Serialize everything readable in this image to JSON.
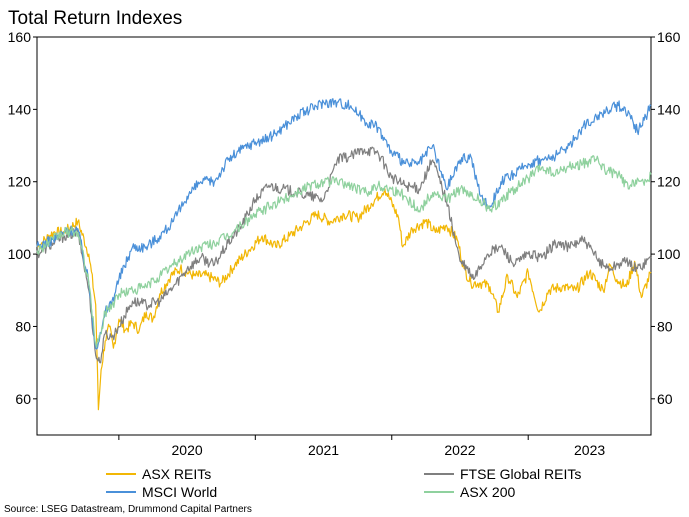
{
  "chart_data": {
    "type": "line",
    "title": "Total Return Indexes",
    "source": "Source: LSEG Datastream, Drummond Capital Partners",
    "ylim": [
      50,
      160
    ],
    "yticks": [
      60,
      80,
      100,
      120,
      140,
      160
    ],
    "y_tick_labels": [
      "60",
      "80",
      "100",
      "120",
      "140",
      "160"
    ],
    "x_range": [
      2019.4,
      2023.9
    ],
    "x_year_boundaries": [
      2020.0,
      2021.0,
      2022.0,
      2023.0
    ],
    "x_labels": [
      {
        "text": "2020",
        "at": 2020.5
      },
      {
        "text": "2021",
        "at": 2021.5
      },
      {
        "text": "2022",
        "at": 2022.5
      },
      {
        "text": "2023",
        "at": 2023.45
      }
    ],
    "series": [
      {
        "name": "ASX REITs",
        "color": "#F2B705",
        "x": [
          2019.4,
          2019.52,
          2019.6,
          2019.7,
          2019.78,
          2019.83,
          2019.85,
          2019.87,
          2019.9,
          2019.93,
          2019.96,
          2020.0,
          2020.05,
          2020.1,
          2020.15,
          2020.2,
          2020.25,
          2020.3,
          2020.38,
          2020.45,
          2020.55,
          2020.65,
          2020.75,
          2020.85,
          2020.95,
          2021.05,
          2021.15,
          2021.25,
          2021.35,
          2021.45,
          2021.55,
          2021.65,
          2021.75,
          2021.85,
          2021.95,
          2022.05,
          2022.08,
          2022.15,
          2022.25,
          2022.32,
          2022.4,
          2022.48,
          2022.53,
          2022.58,
          2022.65,
          2022.72,
          2022.78,
          2022.85,
          2022.92,
          2023.0,
          2023.08,
          2023.15,
          2023.25,
          2023.35,
          2023.45,
          2023.55,
          2023.6,
          2023.65,
          2023.72,
          2023.78,
          2023.83,
          2023.9
        ],
        "values": [
          102,
          106,
          106,
          109,
          100,
          86,
          57,
          68,
          76,
          80,
          74,
          82,
          79,
          81,
          79,
          84,
          82,
          89,
          94,
          96,
          94,
          94,
          92,
          97,
          101,
          105,
          102,
          105,
          108,
          111,
          109,
          111,
          110,
          114,
          118,
          110,
          102,
          107,
          109,
          106,
          108,
          104,
          96,
          92,
          92,
          91,
          84,
          94,
          88,
          95,
          84,
          90,
          91,
          90,
          95,
          90,
          97,
          93,
          91,
          98,
          88,
          95
        ]
      },
      {
        "name": "FTSE Global REITs",
        "color": "#7F7F7F",
        "x": [
          2019.4,
          2019.52,
          2019.6,
          2019.7,
          2019.78,
          2019.83,
          2019.86,
          2019.9,
          2019.95,
          2020.0,
          2020.1,
          2020.2,
          2020.3,
          2020.4,
          2020.5,
          2020.6,
          2020.7,
          2020.8,
          2020.9,
          2021.0,
          2021.1,
          2021.2,
          2021.3,
          2021.4,
          2021.5,
          2021.6,
          2021.7,
          2021.8,
          2021.9,
          2022.0,
          2022.1,
          2022.2,
          2022.3,
          2022.4,
          2022.5,
          2022.55,
          2022.6,
          2022.7,
          2022.8,
          2022.9,
          2023.0,
          2023.1,
          2023.2,
          2023.3,
          2023.4,
          2023.5,
          2023.55,
          2023.6,
          2023.7,
          2023.8,
          2023.9
        ],
        "values": [
          100,
          103,
          105,
          106,
          90,
          72,
          70,
          78,
          77,
          80,
          87,
          86,
          87,
          91,
          96,
          99,
          97,
          103,
          108,
          115,
          119,
          118,
          117,
          116,
          115,
          126,
          127,
          129,
          128,
          121,
          119,
          118,
          126,
          115,
          98,
          96,
          93,
          100,
          102,
          97,
          100,
          99,
          103,
          102,
          104,
          99,
          97,
          96,
          98,
          96,
          99
        ]
      },
      {
        "name": "MSCI World",
        "color": "#4A90D9",
        "x": [
          2019.4,
          2019.52,
          2019.6,
          2019.7,
          2019.78,
          2019.83,
          2019.87,
          2019.9,
          2019.95,
          2020.0,
          2020.1,
          2020.2,
          2020.3,
          2020.4,
          2020.5,
          2020.6,
          2020.7,
          2020.8,
          2020.9,
          2021.0,
          2021.1,
          2021.2,
          2021.3,
          2021.4,
          2021.5,
          2021.6,
          2021.7,
          2021.8,
          2021.9,
          2022.0,
          2022.1,
          2022.2,
          2022.3,
          2022.4,
          2022.5,
          2022.58,
          2022.65,
          2022.72,
          2022.8,
          2022.9,
          2023.0,
          2023.1,
          2023.2,
          2023.3,
          2023.4,
          2023.5,
          2023.58,
          2023.66,
          2023.74,
          2023.8,
          2023.85,
          2023.9
        ],
        "values": [
          102,
          104,
          106,
          107,
          92,
          74,
          78,
          84,
          87,
          93,
          102,
          102,
          105,
          109,
          116,
          120,
          120,
          126,
          129,
          131,
          132,
          135,
          138,
          140,
          142,
          142,
          141,
          137,
          135,
          128,
          125,
          125,
          130,
          118,
          126,
          127,
          116,
          113,
          120,
          122,
          125,
          126,
          127,
          130,
          135,
          138,
          140,
          141,
          139,
          134,
          137,
          141
        ]
      },
      {
        "name": "ASX 200",
        "color": "#8FD19E",
        "x": [
          2019.4,
          2019.52,
          2019.6,
          2019.7,
          2019.78,
          2019.83,
          2019.87,
          2019.9,
          2019.95,
          2020.0,
          2020.1,
          2020.2,
          2020.3,
          2020.4,
          2020.5,
          2020.6,
          2020.7,
          2020.8,
          2020.9,
          2021.0,
          2021.1,
          2021.2,
          2021.3,
          2021.4,
          2021.5,
          2021.6,
          2021.7,
          2021.8,
          2021.9,
          2022.0,
          2022.1,
          2022.2,
          2022.3,
          2022.4,
          2022.5,
          2022.58,
          2022.65,
          2022.72,
          2022.8,
          2022.9,
          2023.0,
          2023.1,
          2023.2,
          2023.3,
          2023.4,
          2023.5,
          2023.58,
          2023.66,
          2023.74,
          2023.8,
          2023.85,
          2023.9
        ],
        "values": [
          101,
          104,
          106,
          106,
          92,
          75,
          78,
          84,
          86,
          89,
          90,
          91,
          94,
          97,
          100,
          102,
          103,
          105,
          108,
          111,
          113,
          115,
          117,
          119,
          120,
          120,
          119,
          117,
          119,
          118,
          116,
          112,
          117,
          115,
          118,
          116,
          115,
          112,
          115,
          118,
          121,
          124,
          122,
          124,
          125,
          126,
          123,
          122,
          118,
          121,
          119,
          122
        ]
      }
    ],
    "legend": [
      {
        "name": "ASX REITs",
        "color": "#F2B705"
      },
      {
        "name": "FTSE Global REITs",
        "color": "#7F7F7F"
      },
      {
        "name": "MSCI World",
        "color": "#4A90D9"
      },
      {
        "name": "ASX 200",
        "color": "#8FD19E"
      }
    ]
  }
}
